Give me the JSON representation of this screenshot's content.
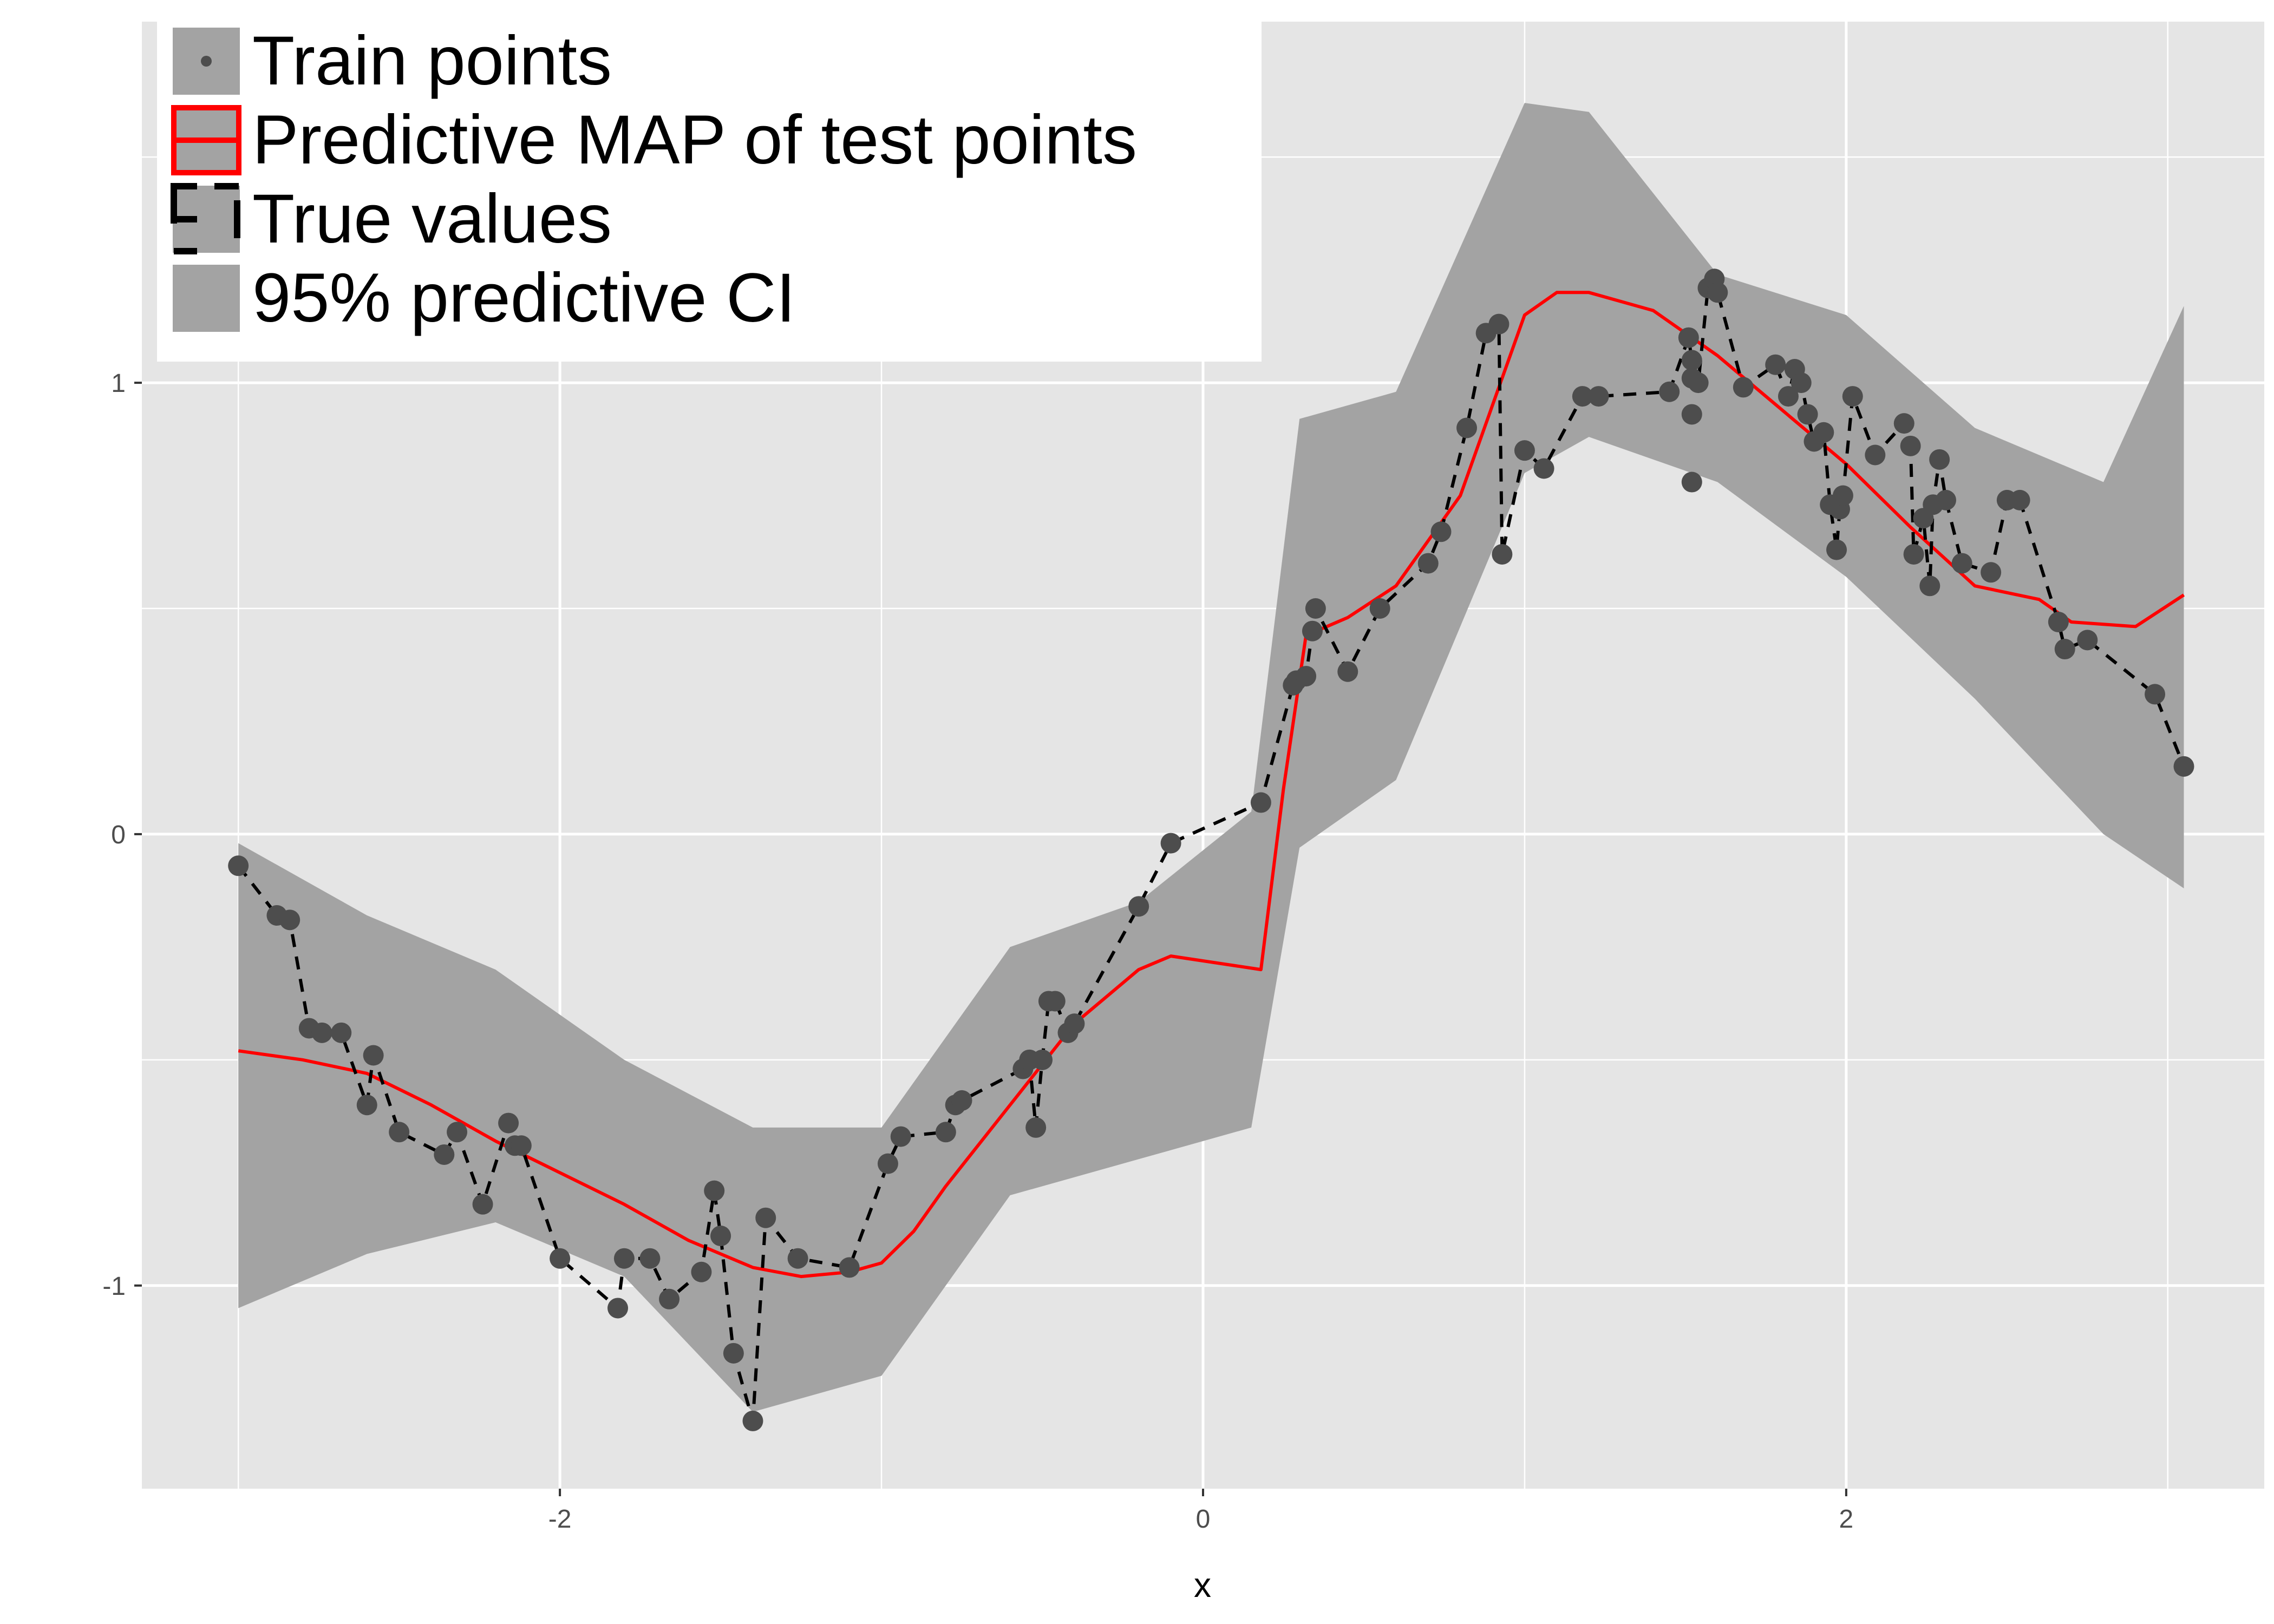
{
  "chart_data": {
    "type": "line",
    "title": "",
    "xlabel": "x",
    "ylabel": "",
    "xlim": [
      -3.3,
      3.3
    ],
    "ylim": [
      -1.45,
      1.8
    ],
    "x_ticks": [
      -2,
      0,
      2
    ],
    "x_tick_labels": [
      "-2",
      "0",
      "2"
    ],
    "y_ticks": [
      -1,
      0,
      1
    ],
    "y_tick_labels": [
      "-1",
      "0",
      "1"
    ],
    "grid": true,
    "legend_position": "top-left",
    "colors": {
      "panel": "#e5e5e5",
      "grid": "#ffffff",
      "ribbon": "#a3a3a3",
      "map_line": "#ff0000",
      "true_line": "#000000",
      "points": "#4d4d4d",
      "tick_text": "#4d4d4d"
    },
    "legend": [
      {
        "label": "Train points",
        "icon": "point-key-icon"
      },
      {
        "label": "Predictive MAP of test points",
        "icon": "red-line-key-icon"
      },
      {
        "label": "True values",
        "icon": "dashed-line-key-icon"
      },
      {
        "label": "95% predictive CI",
        "icon": "ribbon-key-icon"
      }
    ],
    "ci_band": {
      "name": "95% predictive CI",
      "x": [
        -3.0,
        -2.6,
        -2.2,
        -1.8,
        -1.4,
        -1.0,
        -0.6,
        -0.2,
        0.15,
        0.3,
        0.6,
        1.0,
        1.2,
        1.6,
        2.0,
        2.4,
        2.8,
        3.05
      ],
      "lower": [
        -1.05,
        -0.93,
        -0.86,
        -0.98,
        -1.28,
        -1.2,
        -0.8,
        -0.72,
        -0.65,
        -0.03,
        0.12,
        0.8,
        0.88,
        0.78,
        0.57,
        0.3,
        0.0,
        -0.12
      ],
      "upper": [
        -0.02,
        -0.18,
        -0.3,
        -0.5,
        -0.65,
        -0.65,
        -0.25,
        -0.15,
        0.05,
        0.92,
        0.98,
        1.62,
        1.6,
        1.24,
        1.15,
        0.9,
        0.78,
        1.17
      ]
    },
    "series": [
      {
        "name": "Predictive MAP of test points",
        "style": "solid",
        "x": [
          -3.0,
          -2.8,
          -2.6,
          -2.4,
          -2.2,
          -2.0,
          -1.8,
          -1.6,
          -1.4,
          -1.25,
          -1.1,
          -1.0,
          -0.9,
          -0.8,
          -0.6,
          -0.4,
          -0.2,
          -0.1,
          0.18,
          0.25,
          0.32,
          0.45,
          0.6,
          0.8,
          0.9,
          1.0,
          1.1,
          1.2,
          1.4,
          1.6,
          1.8,
          2.0,
          2.2,
          2.4,
          2.6,
          2.7,
          2.9,
          3.05
        ],
        "y": [
          -0.48,
          -0.5,
          -0.53,
          -0.6,
          -0.68,
          -0.75,
          -0.82,
          -0.9,
          -0.96,
          -0.98,
          -0.97,
          -0.95,
          -0.88,
          -0.78,
          -0.6,
          -0.42,
          -0.3,
          -0.27,
          -0.3,
          0.1,
          0.44,
          0.48,
          0.55,
          0.75,
          0.95,
          1.15,
          1.2,
          1.2,
          1.16,
          1.06,
          0.94,
          0.82,
          0.68,
          0.55,
          0.52,
          0.47,
          0.46,
          0.53
        ]
      },
      {
        "name": "True values",
        "style": "dashed",
        "x": [
          -3.0,
          -2.88,
          -2.84,
          -2.78,
          -2.74,
          -2.68,
          -2.6,
          -2.58,
          -2.5,
          -2.36,
          -2.32,
          -2.24,
          -2.16,
          -2.14,
          -2.12,
          -2.0,
          -1.82,
          -1.8,
          -1.72,
          -1.66,
          -1.56,
          -1.52,
          -1.5,
          -1.46,
          -1.4,
          -1.36,
          -1.26,
          -1.1,
          -0.98,
          -0.94,
          -0.8,
          -0.77,
          -0.75,
          -0.56,
          -0.54,
          -0.52,
          -0.5,
          -0.48,
          -0.46,
          -0.42,
          -0.4,
          -0.2,
          -0.1,
          0.18,
          0.28,
          0.29,
          0.32,
          0.34,
          0.35,
          0.45,
          0.55,
          0.7,
          0.74,
          0.82,
          0.88,
          0.92,
          0.93,
          1.0,
          1.06,
          1.18,
          1.23,
          1.45,
          1.51,
          1.52,
          1.54,
          1.57,
          1.59,
          1.6,
          1.68,
          1.78,
          1.82,
          1.84,
          1.86,
          1.88,
          1.9,
          1.93,
          1.95,
          1.97,
          1.98,
          1.99,
          2.02,
          2.09,
          2.18,
          2.2,
          2.21,
          2.24,
          2.26,
          2.27,
          2.29,
          2.31,
          2.36,
          2.45,
          2.5,
          2.54,
          2.66,
          2.68,
          2.75,
          2.96,
          3.05
        ],
        "y": [
          -0.07,
          -0.18,
          -0.19,
          -0.43,
          -0.44,
          -0.44,
          -0.6,
          -0.49,
          -0.66,
          -0.71,
          -0.66,
          -0.82,
          -0.64,
          -0.69,
          -0.69,
          -0.94,
          -1.05,
          -0.94,
          -0.94,
          -1.03,
          -0.97,
          -0.79,
          -0.89,
          -1.15,
          -1.3,
          -0.85,
          -0.94,
          -0.96,
          -0.73,
          -0.67,
          -0.66,
          -0.6,
          -0.59,
          -0.52,
          -0.5,
          -0.65,
          -0.5,
          -0.37,
          -0.37,
          -0.44,
          -0.42,
          -0.16,
          -0.02,
          0.07,
          0.33,
          0.34,
          0.35,
          0.45,
          0.5,
          0.36,
          0.5,
          0.6,
          0.67,
          0.9,
          1.11,
          1.13,
          0.62,
          0.85,
          0.81,
          0.97,
          0.97,
          0.98,
          1.1,
          1.05,
          1.0,
          1.21,
          1.23,
          1.2,
          0.99,
          1.04,
          0.97,
          1.03,
          1.0,
          0.93,
          0.87,
          0.89,
          0.73,
          0.63,
          0.72,
          0.75,
          0.97,
          0.84,
          0.91,
          0.86,
          0.62,
          0.7,
          0.55,
          0.73,
          0.83,
          0.74,
          0.6,
          0.58,
          0.74,
          0.74,
          0.47,
          0.41,
          0.43,
          0.31,
          0.15
        ]
      }
    ],
    "train_points": {
      "name": "Train points",
      "x": [
        -3.0,
        -2.88,
        -2.84,
        -2.78,
        -2.74,
        -2.68,
        -2.6,
        -2.58,
        -2.5,
        -2.36,
        -2.32,
        -2.24,
        -2.16,
        -2.14,
        -2.12,
        -2.0,
        -1.82,
        -1.8,
        -1.72,
        -1.66,
        -1.56,
        -1.52,
        -1.5,
        -1.46,
        -1.4,
        -1.36,
        -1.26,
        -1.1,
        -0.98,
        -0.94,
        -0.8,
        -0.77,
        -0.75,
        -0.56,
        -0.54,
        -0.52,
        -0.5,
        -0.48,
        -0.46,
        -0.42,
        -0.4,
        -0.2,
        -0.1,
        0.18,
        0.28,
        0.29,
        0.32,
        0.34,
        0.35,
        0.45,
        0.55,
        0.7,
        0.74,
        0.82,
        0.88,
        0.92,
        0.93,
        1.0,
        1.06,
        1.18,
        1.23,
        1.45,
        1.51,
        1.52,
        1.54,
        1.57,
        1.59,
        1.6,
        1.68,
        1.78,
        1.82,
        1.84,
        1.86,
        1.88,
        1.9,
        1.93,
        1.95,
        1.97,
        1.98,
        1.99,
        2.02,
        2.09,
        2.18,
        2.2,
        2.21,
        2.24,
        2.26,
        2.27,
        2.29,
        2.31,
        2.36,
        2.45,
        2.5,
        2.54,
        2.66,
        2.68,
        2.75,
        2.96,
        3.05,
        1.52,
        1.52,
        1.52
      ],
      "y": [
        -0.07,
        -0.18,
        -0.19,
        -0.43,
        -0.44,
        -0.44,
        -0.6,
        -0.49,
        -0.66,
        -0.71,
        -0.66,
        -0.82,
        -0.64,
        -0.69,
        -0.69,
        -0.94,
        -1.05,
        -0.94,
        -0.94,
        -1.03,
        -0.97,
        -0.79,
        -0.89,
        -1.15,
        -1.3,
        -0.85,
        -0.94,
        -0.96,
        -0.73,
        -0.67,
        -0.66,
        -0.6,
        -0.59,
        -0.52,
        -0.5,
        -0.65,
        -0.5,
        -0.37,
        -0.37,
        -0.44,
        -0.42,
        -0.16,
        -0.02,
        0.07,
        0.33,
        0.34,
        0.35,
        0.45,
        0.5,
        0.36,
        0.5,
        0.6,
        0.67,
        0.9,
        1.11,
        1.13,
        0.62,
        0.85,
        0.81,
        0.97,
        0.97,
        0.98,
        1.1,
        1.05,
        1.0,
        1.21,
        1.23,
        1.2,
        0.99,
        1.04,
        0.97,
        1.03,
        1.0,
        0.93,
        0.87,
        0.89,
        0.73,
        0.63,
        0.72,
        0.75,
        0.97,
        0.84,
        0.91,
        0.86,
        0.62,
        0.7,
        0.55,
        0.73,
        0.83,
        0.74,
        0.6,
        0.58,
        0.74,
        0.74,
        0.47,
        0.41,
        0.43,
        0.31,
        0.15,
        0.78,
        0.93,
        1.01
      ]
    }
  }
}
